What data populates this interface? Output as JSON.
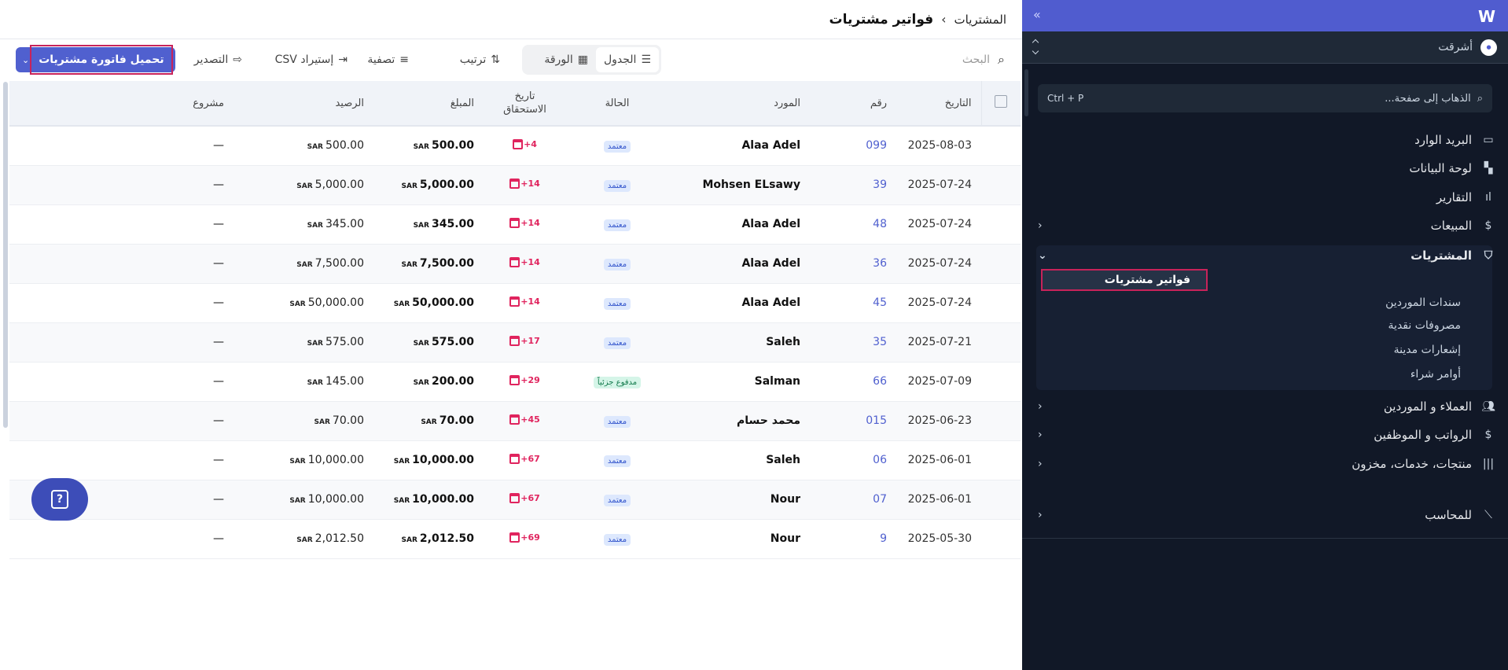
{
  "header": {
    "breadcrumb_parent": "المشتريات",
    "breadcrumb_sep": "›",
    "title": "فواتير مشتريات"
  },
  "toolbar": {
    "search_placeholder": "البحث",
    "view_table": "الجدول",
    "view_sheet": "الورقة",
    "sort": "ترتيب",
    "filter": "تصفية",
    "import_csv": "إستيراد CSV",
    "export": "التصدير",
    "primary": "تحميل فاتورة مشتريات"
  },
  "table": {
    "columns": [
      "التاريخ",
      "رقم",
      "المورد",
      "الحالة",
      "تاريخ الاستحقاق",
      "المبلغ",
      "الرصيد",
      "مشروع"
    ],
    "currency": "SAR",
    "rows": [
      {
        "date": "2025-08-03",
        "num": "099",
        "supplier": "Alaa Adel",
        "status": "معتمد",
        "due": "+4",
        "amount": "500.00",
        "balance": "500.00",
        "project": "—"
      },
      {
        "date": "2025-07-24",
        "num": "39",
        "supplier": "Mohsen ELsawy",
        "status": "معتمد",
        "due": "+14",
        "amount": "5,000.00",
        "balance": "5,000.00",
        "project": "—"
      },
      {
        "date": "2025-07-24",
        "num": "48",
        "supplier": "Alaa Adel",
        "status": "معتمد",
        "due": "+14",
        "amount": "345.00",
        "balance": "345.00",
        "project": "—"
      },
      {
        "date": "2025-07-24",
        "num": "36",
        "supplier": "Alaa Adel",
        "status": "معتمد",
        "due": "+14",
        "amount": "7,500.00",
        "balance": "7,500.00",
        "project": "—"
      },
      {
        "date": "2025-07-24",
        "num": "45",
        "supplier": "Alaa Adel",
        "status": "معتمد",
        "due": "+14",
        "amount": "50,000.00",
        "balance": "50,000.00",
        "project": "—"
      },
      {
        "date": "2025-07-21",
        "num": "35",
        "supplier": "Saleh",
        "status": "معتمد",
        "due": "+17",
        "amount": "575.00",
        "balance": "575.00",
        "project": "—"
      },
      {
        "date": "2025-07-09",
        "num": "66",
        "supplier": "Salman",
        "status": "مدفوع جزئياً",
        "due": "+29",
        "amount": "200.00",
        "balance": "145.00",
        "project": "—"
      },
      {
        "date": "2025-06-23",
        "num": "015",
        "supplier": "محمد حسام",
        "status": "معتمد",
        "due": "+45",
        "amount": "70.00",
        "balance": "70.00",
        "project": "—"
      },
      {
        "date": "2025-06-01",
        "num": "06",
        "supplier": "Saleh",
        "status": "معتمد",
        "due": "+67",
        "amount": "10,000.00",
        "balance": "10,000.00",
        "project": "—"
      },
      {
        "date": "2025-06-01",
        "num": "07",
        "supplier": "Nour",
        "status": "معتمد",
        "due": "+67",
        "amount": "10,000.00",
        "balance": "10,000.00",
        "project": "—"
      },
      {
        "date": "2025-05-30",
        "num": "9",
        "supplier": "Nour",
        "status": "معتمد",
        "due": "+69",
        "amount": "2,012.50",
        "balance": "2,012.50",
        "project": "—"
      }
    ]
  },
  "sidebar": {
    "org": "أشرقت",
    "org_avatar": "أشرقت",
    "goto_placeholder": "الذهاب إلى صفحة...",
    "goto_shortcut": "Ctrl + P",
    "items": [
      {
        "label": "البريد الوارد",
        "icon": "inbox-icon"
      },
      {
        "label": "لوحة البيانات",
        "icon": "dashboard-icon"
      },
      {
        "label": "التقارير",
        "icon": "bar-chart-icon"
      },
      {
        "label": "المبيعات",
        "icon": "dollar-icon"
      },
      {
        "label": "المشتريات",
        "icon": "shopping-bag-icon"
      },
      {
        "label": "العملاء و الموردين",
        "icon": "users-icon"
      },
      {
        "label": "الرواتب و الموظفين",
        "icon": "payroll-icon"
      },
      {
        "label": "منتجات، خدمات، مخزون",
        "icon": "barcode-icon"
      },
      {
        "label": "للمحاسب",
        "icon": "accountant-icon"
      }
    ],
    "sub_items": [
      "فواتير مشتريات",
      "سندات الموردين",
      "مصروفات نقدية",
      "إشعارات مدينة",
      "أوامر شراء"
    ]
  },
  "colors": {
    "accent": "#505ccf",
    "sidebar_bg": "#111827",
    "highlight": "#c8235a",
    "due": "#e0245e"
  }
}
